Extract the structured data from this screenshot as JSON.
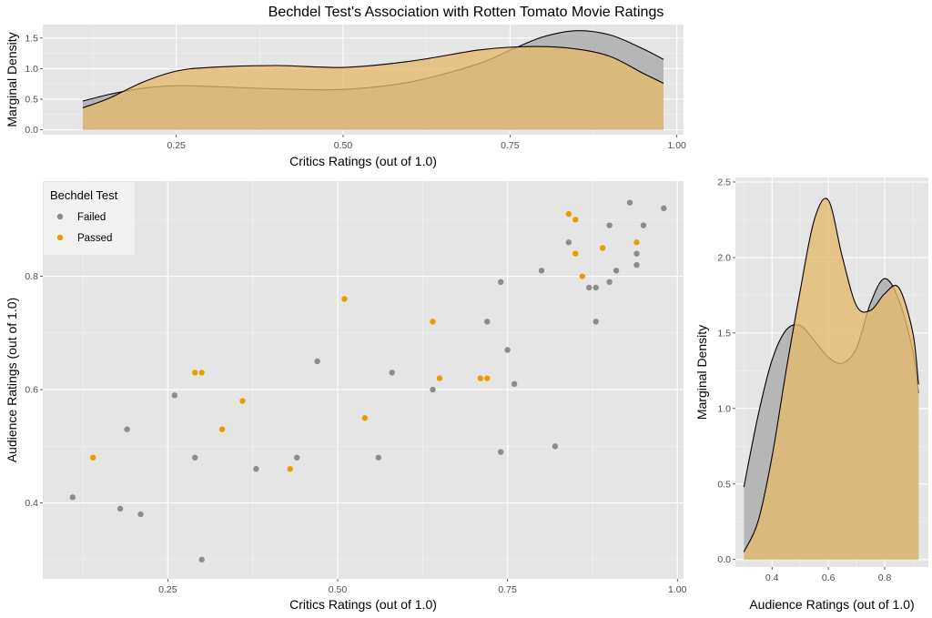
{
  "chart_data": [
    {
      "id": "top",
      "type": "area",
      "title": "Bechdel Test's Association with Rotten Tomato Movie Ratings",
      "xlabel": "Critics Ratings (out of 1.0)",
      "ylabel": "Marginal Density",
      "xlim": [
        0.05,
        1.01
      ],
      "ylim": [
        -0.08,
        1.72
      ],
      "xticks": [
        0.25,
        0.5,
        0.75,
        1.0
      ],
      "xtick_labels": [
        "0.25",
        "0.50",
        "0.75",
        "1.00"
      ],
      "yticks": [
        0.0,
        0.5,
        1.0,
        1.5
      ],
      "ytick_labels": [
        "0.0",
        "0.5",
        "1.0",
        "1.5"
      ],
      "grid": true,
      "series": [
        {
          "name": "Failed",
          "color": "#b3b3b3",
          "x": [
            0.11,
            0.15,
            0.2,
            0.25,
            0.3,
            0.4,
            0.5,
            0.6,
            0.7,
            0.75,
            0.8,
            0.85,
            0.9,
            0.95,
            0.98
          ],
          "y": [
            0.47,
            0.58,
            0.68,
            0.72,
            0.71,
            0.67,
            0.66,
            0.78,
            1.07,
            1.3,
            1.52,
            1.62,
            1.55,
            1.32,
            1.15
          ]
        },
        {
          "name": "Passed",
          "color": "#e6b96b",
          "x": [
            0.11,
            0.15,
            0.2,
            0.25,
            0.3,
            0.4,
            0.5,
            0.6,
            0.7,
            0.75,
            0.8,
            0.85,
            0.9,
            0.95,
            0.98
          ],
          "y": [
            0.36,
            0.52,
            0.78,
            0.96,
            1.02,
            1.05,
            1.02,
            1.12,
            1.3,
            1.35,
            1.36,
            1.32,
            1.2,
            0.92,
            0.76
          ]
        }
      ]
    },
    {
      "id": "main",
      "type": "scatter",
      "xlabel": "Critics Ratings (out of 1.0)",
      "ylabel": "Audience Ratings (out of 1.0)",
      "xlim": [
        0.066,
        1.009
      ],
      "ylim": [
        0.266,
        0.968
      ],
      "xticks": [
        0.25,
        0.5,
        0.75,
        1.0
      ],
      "xtick_labels": [
        "0.25",
        "0.50",
        "0.75",
        "1.00"
      ],
      "yticks": [
        0.4,
        0.6,
        0.8
      ],
      "ytick_labels": [
        "0.4",
        "0.6",
        "0.8"
      ],
      "grid": true,
      "legend": {
        "title": "Bechdel Test",
        "position": "top-left",
        "entries": [
          "Failed",
          "Passed"
        ]
      },
      "series": [
        {
          "name": "Failed",
          "color": "#8c8c8c",
          "points": [
            [
              0.11,
              0.41
            ],
            [
              0.18,
              0.39
            ],
            [
              0.19,
              0.53
            ],
            [
              0.21,
              0.38
            ],
            [
              0.26,
              0.59
            ],
            [
              0.29,
              0.48
            ],
            [
              0.3,
              0.3
            ],
            [
              0.38,
              0.46
            ],
            [
              0.44,
              0.48
            ],
            [
              0.47,
              0.65
            ],
            [
              0.56,
              0.48
            ],
            [
              0.58,
              0.63
            ],
            [
              0.64,
              0.6
            ],
            [
              0.72,
              0.72
            ],
            [
              0.74,
              0.79
            ],
            [
              0.74,
              0.49
            ],
            [
              0.75,
              0.67
            ],
            [
              0.76,
              0.61
            ],
            [
              0.8,
              0.81
            ],
            [
              0.82,
              0.5
            ],
            [
              0.84,
              0.86
            ],
            [
              0.87,
              0.78
            ],
            [
              0.88,
              0.78
            ],
            [
              0.88,
              0.72
            ],
            [
              0.9,
              0.79
            ],
            [
              0.9,
              0.89
            ],
            [
              0.91,
              0.81
            ],
            [
              0.93,
              0.93
            ],
            [
              0.94,
              0.84
            ],
            [
              0.94,
              0.82
            ],
            [
              0.95,
              0.89
            ],
            [
              0.98,
              0.92
            ]
          ]
        },
        {
          "name": "Passed",
          "color": "#e69f00",
          "points": [
            [
              0.14,
              0.48
            ],
            [
              0.29,
              0.63
            ],
            [
              0.3,
              0.63
            ],
            [
              0.33,
              0.53
            ],
            [
              0.36,
              0.58
            ],
            [
              0.43,
              0.46
            ],
            [
              0.51,
              0.76
            ],
            [
              0.54,
              0.55
            ],
            [
              0.64,
              0.72
            ],
            [
              0.65,
              0.62
            ],
            [
              0.71,
              0.62
            ],
            [
              0.72,
              0.62
            ],
            [
              0.84,
              0.91
            ],
            [
              0.85,
              0.9
            ],
            [
              0.85,
              0.84
            ],
            [
              0.86,
              0.8
            ],
            [
              0.89,
              0.85
            ],
            [
              0.94,
              0.86
            ]
          ]
        }
      ]
    },
    {
      "id": "right",
      "type": "area",
      "xlabel": "Audience Ratings (out of 1.0)",
      "ylabel": "Marginal Density",
      "xlim": [
        0.27,
        0.955
      ],
      "ylim": [
        -0.05,
        2.53
      ],
      "xticks": [
        0.4,
        0.6,
        0.8
      ],
      "xtick_labels": [
        "0.4",
        "0.6",
        "0.8"
      ],
      "yticks": [
        0.0,
        0.5,
        1.0,
        1.5,
        2.0,
        2.5
      ],
      "ytick_labels": [
        "0.0",
        "0.5",
        "1.0",
        "1.5",
        "2.0",
        "2.5"
      ],
      "grid": true,
      "series": [
        {
          "name": "Failed",
          "color": "#b3b3b3",
          "x": [
            0.3,
            0.35,
            0.4,
            0.45,
            0.5,
            0.55,
            0.6,
            0.65,
            0.7,
            0.75,
            0.8,
            0.85,
            0.9,
            0.92
          ],
          "y": [
            0.48,
            0.95,
            1.32,
            1.52,
            1.55,
            1.45,
            1.34,
            1.3,
            1.4,
            1.7,
            1.86,
            1.72,
            1.38,
            1.1
          ]
        },
        {
          "name": "Passed",
          "color": "#e6b96b",
          "x": [
            0.3,
            0.35,
            0.4,
            0.45,
            0.5,
            0.55,
            0.6,
            0.65,
            0.7,
            0.75,
            0.8,
            0.85,
            0.9,
            0.92
          ],
          "y": [
            0.05,
            0.25,
            0.68,
            1.25,
            1.78,
            2.25,
            2.38,
            2.0,
            1.68,
            1.65,
            1.76,
            1.8,
            1.5,
            1.16
          ]
        }
      ]
    }
  ]
}
